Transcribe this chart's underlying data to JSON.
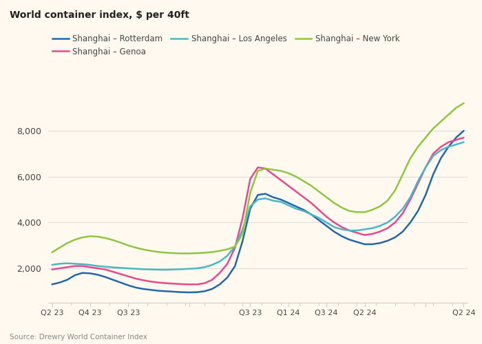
{
  "title": "World container index, $ per 40ft",
  "source": "Source: Drewry World Container Index",
  "yticks": [
    2000,
    4000,
    6000,
    8000
  ],
  "ylim": [
    500,
    9500
  ],
  "legend": [
    {
      "label": "Shanghai – Rotterdam",
      "color": "#2166ac"
    },
    {
      "label": "Shanghai – Genoa",
      "color": "#e8488a"
    },
    {
      "label": "Shanghai – Los Angeles",
      "color": "#4ab5c4"
    },
    {
      "label": "Shanghai – New York",
      "color": "#8dc63f"
    }
  ],
  "rotterdam": [
    1300,
    1380,
    1500,
    1700,
    1800,
    1780,
    1720,
    1620,
    1500,
    1380,
    1260,
    1160,
    1100,
    1060,
    1020,
    1000,
    980,
    960,
    950,
    960,
    1000,
    1100,
    1300,
    1600,
    2100,
    3200,
    4600,
    5200,
    5250,
    5100,
    5000,
    4850,
    4700,
    4550,
    4350,
    4100,
    3850,
    3600,
    3400,
    3250,
    3150,
    3050,
    3050,
    3100,
    3200,
    3350,
    3600,
    4000,
    4500,
    5200,
    6100,
    6800,
    7300,
    7700,
    8000
  ],
  "genoa": [
    1950,
    2000,
    2050,
    2100,
    2100,
    2050,
    2000,
    1950,
    1850,
    1750,
    1650,
    1550,
    1480,
    1420,
    1380,
    1350,
    1330,
    1310,
    1300,
    1300,
    1350,
    1500,
    1800,
    2200,
    2900,
    4200,
    5900,
    6400,
    6350,
    6100,
    5850,
    5600,
    5350,
    5100,
    4850,
    4550,
    4250,
    4000,
    3800,
    3650,
    3550,
    3450,
    3500,
    3600,
    3750,
    4000,
    4400,
    5000,
    5700,
    6400,
    7000,
    7300,
    7500,
    7600,
    7700
  ],
  "losangeles": [
    2150,
    2200,
    2220,
    2200,
    2180,
    2150,
    2100,
    2070,
    2040,
    2020,
    2000,
    1980,
    1960,
    1950,
    1940,
    1940,
    1950,
    1960,
    1980,
    2000,
    2050,
    2150,
    2300,
    2550,
    2950,
    3700,
    4700,
    5000,
    5050,
    4950,
    4900,
    4750,
    4600,
    4500,
    4350,
    4200,
    4000,
    3800,
    3700,
    3650,
    3650,
    3700,
    3750,
    3850,
    4000,
    4250,
    4600,
    5100,
    5800,
    6400,
    6900,
    7150,
    7300,
    7400,
    7500
  ],
  "newyork": [
    2700,
    2900,
    3100,
    3250,
    3350,
    3400,
    3380,
    3320,
    3230,
    3120,
    3000,
    2900,
    2820,
    2760,
    2710,
    2680,
    2660,
    2650,
    2650,
    2660,
    2680,
    2710,
    2760,
    2830,
    2950,
    3500,
    5300,
    6250,
    6350,
    6300,
    6250,
    6150,
    6000,
    5800,
    5600,
    5350,
    5100,
    4850,
    4650,
    4500,
    4450,
    4450,
    4550,
    4700,
    4950,
    5400,
    6100,
    6800,
    7300,
    7700,
    8100,
    8400,
    8700,
    9000,
    9200
  ],
  "n_points": 55,
  "tick_positions": [
    0,
    5,
    10,
    18,
    26,
    31,
    36,
    41,
    49,
    54
  ],
  "tick_labels": [
    "Q2 23",
    "Q4 23",
    "Q3 23",
    "",
    "Q3 23",
    "Q1 24",
    "Q3 24",
    "Q2 24",
    "",
    "Q2 24"
  ],
  "background_color": "#FFF9F0",
  "plot_bg": "#FFF9F0",
  "grid_color": "#dddddd",
  "spine_color": "#cccccc",
  "text_color": "#444444",
  "title_color": "#222222",
  "source_color": "#888888"
}
